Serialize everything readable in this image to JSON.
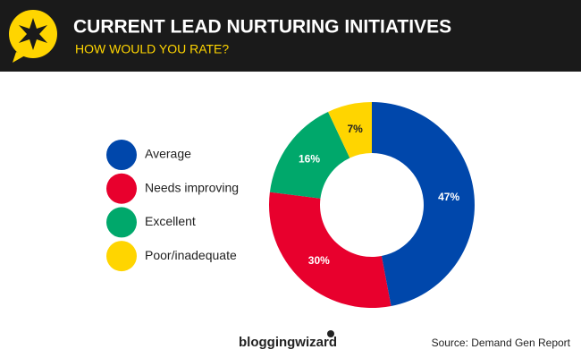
{
  "chart_data": {
    "type": "donut",
    "title": "CURRENT LEAD NURTURING INITIATIVES",
    "subtitle": "HOW WOULD YOU RATE?",
    "categories": [
      "Average",
      "Needs improving",
      "Excellent",
      "Poor/inadequate"
    ],
    "values": [
      47,
      30,
      16,
      7
    ],
    "value_labels": [
      "47%",
      "30%",
      "16%",
      "7%"
    ],
    "colors": [
      "#0047ab",
      "#e8002d",
      "#00a86b",
      "#ffd500"
    ],
    "brand": "bloggingwizard",
    "source": "Source: Demand Gen Report"
  }
}
